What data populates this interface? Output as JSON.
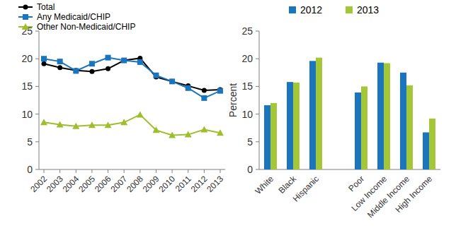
{
  "chart_data": [
    {
      "type": "line",
      "categories": [
        "2002",
        "2003",
        "2004",
        "2005",
        "2006",
        "2007",
        "2008",
        "2009",
        "2010",
        "2011",
        "2012",
        "2013"
      ],
      "series": [
        {
          "name": "Total",
          "color": "#000000",
          "marker": "circle",
          "values": [
            19.1,
            18.4,
            17.9,
            17.7,
            18.2,
            19.7,
            20.1,
            16.7,
            15.9,
            15.1,
            14.3,
            14.4
          ]
        },
        {
          "name": "Any Medicaid/CHIP",
          "color": "#1b75bc",
          "marker": "square",
          "values": [
            20.0,
            19.5,
            17.8,
            19.1,
            20.2,
            19.7,
            19.4,
            17.0,
            15.9,
            14.7,
            12.9,
            14.2
          ]
        },
        {
          "name": "Other Non-Medicaid/CHIP",
          "color": "#9fbe2d",
          "marker": "triangle",
          "values": [
            8.5,
            8.1,
            7.8,
            8.0,
            8.0,
            8.5,
            9.9,
            7.1,
            6.2,
            6.3,
            7.2,
            6.6
          ]
        }
      ],
      "ylim": [
        0,
        25
      ],
      "yticks": [
        0,
        5,
        10,
        15,
        20,
        25
      ],
      "grid": false,
      "legend": "top-left"
    },
    {
      "type": "bar",
      "y_label": "Percent",
      "categories": [
        "White",
        "Black",
        "Hispanic",
        null,
        "Poor",
        "Low Income",
        "Middle Income",
        "High Income"
      ],
      "series": [
        {
          "name": "2012",
          "color": "#1b75bc",
          "values": [
            11.6,
            15.8,
            19.6,
            null,
            13.9,
            19.3,
            17.5,
            6.7
          ]
        },
        {
          "name": "2013",
          "color": "#a4c639",
          "values": [
            12.0,
            15.7,
            20.2,
            null,
            15.0,
            19.2,
            15.2,
            9.2
          ]
        }
      ],
      "ylim": [
        0,
        25
      ],
      "yticks": [
        0,
        5,
        10,
        15,
        20,
        25
      ],
      "grid": false,
      "legend": "top"
    }
  ]
}
